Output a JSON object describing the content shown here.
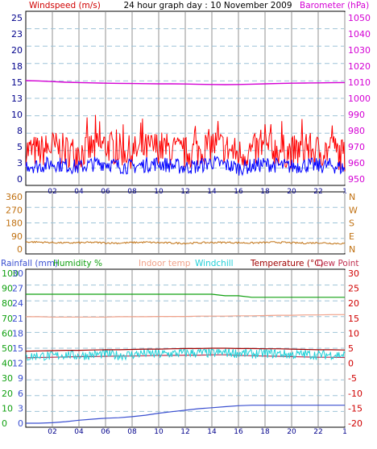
{
  "title": "24 hour graph day : 10 November 2009",
  "colors": {
    "plot_bg": "#ffffff",
    "frame": "#000000",
    "hgrid": "#9ec4d8",
    "vgrid": "#c8c8c8",
    "wind": "#0000ff",
    "gust": "#ff0000",
    "baro": "#d400d4",
    "bearing": "#c07010",
    "rain": "#3a4fd0",
    "humidity": "#10a010",
    "indoor": "#f0a088",
    "windchill": "#20d0d8",
    "temp": "#a00000",
    "dew": "#c03050",
    "axis_dir": "#c07010"
  },
  "x_hours": [
    "02",
    "04",
    "06",
    "08",
    "10",
    "12",
    "14",
    "16",
    "18",
    "20",
    "22",
    "1"
  ],
  "panel1": {
    "left_label": "Windspeed (m/s)",
    "right_label": "Barometer (hPa)",
    "left_ticks": [
      "25",
      "23",
      "20",
      "18",
      "15",
      "13",
      "10",
      "8",
      "5",
      "3",
      "0"
    ],
    "right_ticks": [
      "1050",
      "1040",
      "1030",
      "1020",
      "1010",
      "1000",
      "990",
      "980",
      "970",
      "960",
      "950"
    ]
  },
  "panel2": {
    "left_ticks": [
      "360",
      "270",
      "180",
      "90",
      "0"
    ],
    "right_ticks": [
      "N",
      "W",
      "S",
      "E",
      "N"
    ]
  },
  "panel3": {
    "labels": {
      "rainfall": "Rainfall (mm)",
      "humidity": "Humidity %",
      "indoor": "Indoor temp",
      "windchill": "Windchill",
      "temperature": "Temperature (°C)",
      "dewpoint": "Dew Point"
    },
    "rain_ticks": [
      "30",
      "27",
      "24",
      "21",
      "18",
      "15",
      "12",
      "9",
      "6",
      "3",
      "0"
    ],
    "hum_ticks": [
      "100",
      "90",
      "80",
      "70",
      "60",
      "50",
      "40",
      "30",
      "20",
      "10",
      "0"
    ],
    "temp_ticks": [
      "30",
      "25",
      "20",
      "15",
      "10",
      "5",
      "0",
      "-5",
      "-10",
      "-15",
      "-20"
    ]
  },
  "chart_data": [
    {
      "type": "line",
      "x": [
        0,
        1,
        2,
        3,
        4,
        5,
        6,
        7,
        8,
        9,
        10,
        11,
        12,
        13,
        14,
        15,
        16,
        17,
        18,
        19,
        20,
        21,
        22,
        23,
        24
      ],
      "series": [
        {
          "name": "Windspeed (m/s)",
          "values": [
            2.2,
            2.0,
            2.4,
            2.1,
            1.8,
            2.3,
            2.5,
            2.0,
            1.9,
            2.2,
            2.4,
            2.1,
            1.8,
            2.0,
            2.6,
            2.2,
            1.7,
            2.0,
            2.3,
            2.1,
            1.9,
            2.2,
            2.0,
            2.1,
            1.6
          ]
        },
        {
          "name": "Gust",
          "values": [
            4.5,
            4.2,
            5.0,
            4.4,
            4.0,
            4.8,
            5.2,
            4.5,
            4.1,
            4.6,
            5.0,
            4.4,
            4.0,
            4.4,
            5.4,
            4.8,
            3.8,
            4.3,
            4.9,
            4.5,
            4.1,
            4.7,
            4.3,
            4.6,
            3.5
          ]
        },
        {
          "name": "Barometer (hPa)",
          "values": [
            1011.0,
            1010.8,
            1010.4,
            1010.0,
            1009.8,
            1009.6,
            1009.4,
            1009.3,
            1009.2,
            1009.1,
            1009.0,
            1009.0,
            1008.9,
            1008.7,
            1008.6,
            1008.5,
            1008.6,
            1008.8,
            1009.0,
            1009.2,
            1009.4,
            1009.5,
            1009.6,
            1009.7,
            1009.8
          ]
        }
      ],
      "ylim": [
        0,
        25
      ],
      "y2lim": [
        950,
        1050
      ]
    },
    {
      "type": "line",
      "x": [
        0,
        1,
        2,
        3,
        4,
        5,
        6,
        7,
        8,
        9,
        10,
        11,
        12,
        13,
        14,
        15,
        16,
        17,
        18,
        19,
        20,
        21,
        22,
        23,
        24
      ],
      "series": [
        {
          "name": "Wind direction",
          "values": [
            50,
            48,
            45,
            42,
            44,
            46,
            43,
            41,
            45,
            47,
            44,
            42,
            40,
            43,
            45,
            46,
            44,
            42,
            45,
            47,
            43,
            41,
            44,
            40,
            38
          ]
        }
      ],
      "ylim": [
        0,
        360
      ]
    },
    {
      "type": "line",
      "x": [
        0,
        1,
        2,
        3,
        4,
        5,
        6,
        7,
        8,
        9,
        10,
        11,
        12,
        13,
        14,
        15,
        16,
        17,
        18,
        19,
        20,
        21,
        22,
        23,
        24
      ],
      "series": [
        {
          "name": "Rainfall (mm)",
          "values": [
            0.0,
            0.0,
            0.1,
            0.3,
            0.6,
            0.8,
            1.0,
            1.1,
            1.3,
            1.6,
            2.0,
            2.3,
            2.6,
            2.9,
            3.1,
            3.3,
            3.5,
            3.6,
            3.6,
            3.6,
            3.6,
            3.6,
            3.6,
            3.6,
            3.6
          ]
        },
        {
          "name": "Humidity %",
          "values": [
            86,
            86,
            86,
            86,
            86,
            86,
            86,
            86,
            86,
            86,
            86,
            86,
            86,
            86,
            86,
            85,
            85,
            84,
            84,
            84,
            84,
            84,
            84,
            84,
            84
          ]
        },
        {
          "name": "Indoor temp",
          "values": [
            15.5,
            15.5,
            15.4,
            15.4,
            15.4,
            15.4,
            15.4,
            15.5,
            15.5,
            15.5,
            15.6,
            15.6,
            15.6,
            15.7,
            15.7,
            15.7,
            15.8,
            15.8,
            15.9,
            16.0,
            16.0,
            16.1,
            16.1,
            16.2,
            16.2
          ]
        },
        {
          "name": "Windchill",
          "values": [
            2.0,
            2.6,
            2.3,
            2.9,
            2.5,
            2.8,
            3.1,
            2.6,
            2.9,
            3.3,
            3.0,
            3.2,
            3.4,
            3.5,
            3.3,
            3.6,
            3.4,
            3.1,
            3.3,
            3.2,
            2.8,
            3.0,
            2.7,
            2.9,
            2.7
          ]
        },
        {
          "name": "Temperature (°C)",
          "values": [
            4.0,
            4.1,
            4.2,
            4.3,
            4.3,
            4.4,
            4.5,
            4.5,
            4.6,
            4.7,
            4.7,
            4.8,
            4.9,
            4.9,
            5.0,
            5.0,
            4.9,
            4.9,
            4.8,
            4.8,
            4.7,
            4.6,
            4.5,
            4.5,
            4.4
          ]
        },
        {
          "name": "Dew Point",
          "values": [
            1.8,
            1.9,
            2.0,
            2.1,
            2.2,
            2.2,
            2.3,
            2.4,
            2.4,
            2.5,
            2.6,
            2.6,
            2.7,
            2.7,
            2.8,
            2.8,
            2.6,
            2.5,
            2.4,
            2.3,
            2.2,
            2.1,
            2.0,
            2.0,
            1.9
          ]
        }
      ],
      "ylim": [
        -20,
        30
      ]
    }
  ]
}
